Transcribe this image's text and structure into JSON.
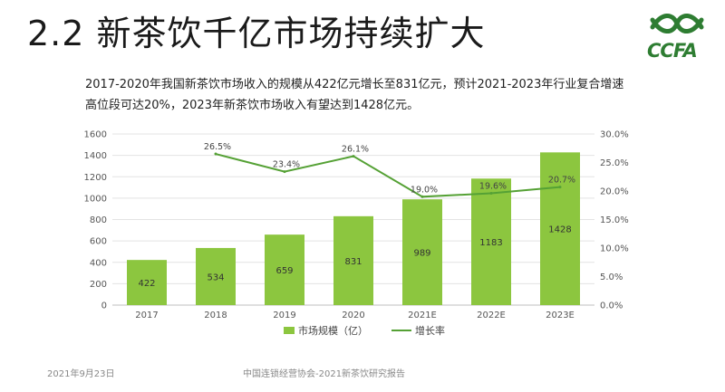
{
  "slide": {
    "title": "2.2 新茶饮千亿市场持续扩大",
    "logo_text": "CCFA",
    "description_line1": "2017-2020年我国新茶饮市场收入的规模从422亿元增长至831亿元，预计2021-2023年行业复合增速",
    "description_line2": "高位段可达20%，2023年新茶饮市场收入有望达到1428亿元。"
  },
  "footer": {
    "date": "2021年9月23日",
    "source": "中国连锁经营协会-2021新茶饮研究报告"
  },
  "colors": {
    "bar": "#8cc63f",
    "line": "#55a135",
    "logo": "#2e7d32"
  },
  "chart_data": {
    "type": "bar",
    "categories": [
      "2017",
      "2018",
      "2019",
      "2020",
      "2021E",
      "2022E",
      "2023E"
    ],
    "series": [
      {
        "name": "市场规模（亿）",
        "type": "bar",
        "axis": "left",
        "values": [
          422,
          534,
          659,
          831,
          989,
          1183,
          1428
        ]
      },
      {
        "name": "增长率",
        "type": "line",
        "axis": "right",
        "values": [
          null,
          26.5,
          23.4,
          26.1,
          19.0,
          19.6,
          20.7
        ],
        "labels": [
          "",
          "26.5%",
          "23.4%",
          "26.1%",
          "19.0%",
          "19.6%",
          "20.7%"
        ]
      }
    ],
    "y_left": {
      "min": 0,
      "max": 1600,
      "step": 200,
      "ticks": [
        "0",
        "200",
        "400",
        "600",
        "800",
        "1000",
        "1200",
        "1400",
        "1600"
      ]
    },
    "y_right": {
      "min": 0,
      "max": 30,
      "step": 5,
      "ticks": [
        "0.0%",
        "5.0%",
        "10.0%",
        "15.0%",
        "20.0%",
        "25.0%",
        "30.0%"
      ]
    },
    "grid": true,
    "legend_position": "bottom"
  }
}
